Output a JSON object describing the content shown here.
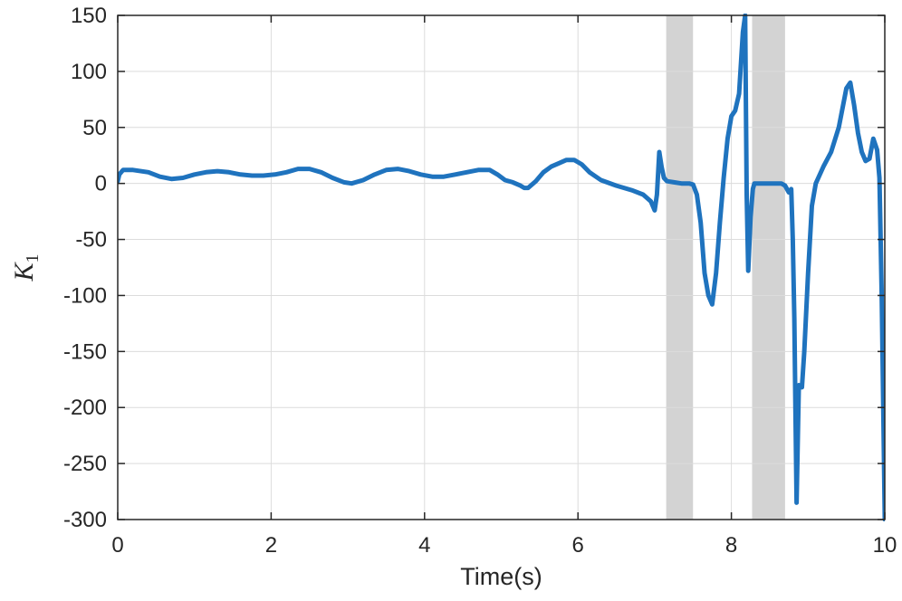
{
  "chart_data": {
    "type": "line",
    "xlabel": "Time(s)",
    "ylabel": "K",
    "ylabel_subscript": "1",
    "xlim": [
      0,
      10
    ],
    "ylim": [
      -300,
      150
    ],
    "xticks": [
      0,
      2,
      4,
      6,
      8,
      10
    ],
    "yticks": [
      150,
      100,
      50,
      0,
      -50,
      -100,
      -150,
      -200,
      -250,
      -300
    ],
    "grid": true,
    "line_color": "#1f73be",
    "shade_color": "#d3d3d3",
    "shaded_intervals": [
      [
        7.15,
        7.5
      ],
      [
        8.27,
        8.7
      ]
    ],
    "series": [
      {
        "x": [
          0.0,
          0.02,
          0.07,
          0.2,
          0.4,
          0.55,
          0.7,
          0.85,
          1.0,
          1.15,
          1.3,
          1.45,
          1.6,
          1.75,
          1.9,
          2.05,
          2.2,
          2.35,
          2.5,
          2.65,
          2.8,
          2.95,
          3.05,
          3.2,
          3.35,
          3.5,
          3.65,
          3.8,
          3.95,
          4.1,
          4.25,
          4.4,
          4.55,
          4.7,
          4.85,
          4.95,
          5.05,
          5.15,
          5.25,
          5.3,
          5.35,
          5.45,
          5.55,
          5.65,
          5.75,
          5.85,
          5.95,
          6.05,
          6.15,
          6.3,
          6.5,
          6.7,
          6.85,
          6.95,
          7.0,
          7.03,
          7.06,
          7.09,
          7.12,
          7.16,
          7.25,
          7.35,
          7.45,
          7.5,
          7.55,
          7.6,
          7.65,
          7.7,
          7.75,
          7.8,
          7.85,
          7.9,
          7.95,
          8.0,
          8.05,
          8.1,
          8.15,
          8.18,
          8.2,
          8.22,
          8.25,
          8.28,
          8.3,
          8.35,
          8.45,
          8.55,
          8.65,
          8.7,
          8.75,
          8.78,
          8.8,
          8.82,
          8.85,
          8.88,
          8.92,
          8.95,
          9.0,
          9.05,
          9.1,
          9.2,
          9.3,
          9.4,
          9.5,
          9.55,
          9.6,
          9.65,
          9.7,
          9.75,
          9.8,
          9.85,
          9.9,
          9.93,
          9.96,
          10.0
        ],
        "y": [
          2,
          8,
          12,
          12,
          10,
          6,
          4,
          5,
          8,
          10,
          11,
          10,
          8,
          7,
          7,
          8,
          10,
          13,
          13,
          10,
          5,
          1,
          0,
          3,
          8,
          12,
          13,
          11,
          8,
          6,
          6,
          8,
          10,
          12,
          12,
          8,
          3,
          1,
          -2,
          -4,
          -4,
          2,
          10,
          15,
          18,
          21,
          21,
          17,
          10,
          3,
          -2,
          -6,
          -10,
          -16,
          -24,
          -10,
          28,
          15,
          5,
          2,
          1,
          0,
          0,
          -1,
          -10,
          -35,
          -80,
          -100,
          -108,
          -80,
          -35,
          5,
          40,
          60,
          65,
          80,
          135,
          150,
          -10,
          -78,
          -30,
          -5,
          0,
          0,
          0,
          0,
          0,
          -2,
          -8,
          -5,
          -50,
          -120,
          -285,
          -180,
          -182,
          -150,
          -80,
          -20,
          0,
          15,
          28,
          50,
          85,
          90,
          70,
          45,
          28,
          20,
          22,
          40,
          30,
          5,
          -100,
          -300
        ]
      }
    ]
  }
}
